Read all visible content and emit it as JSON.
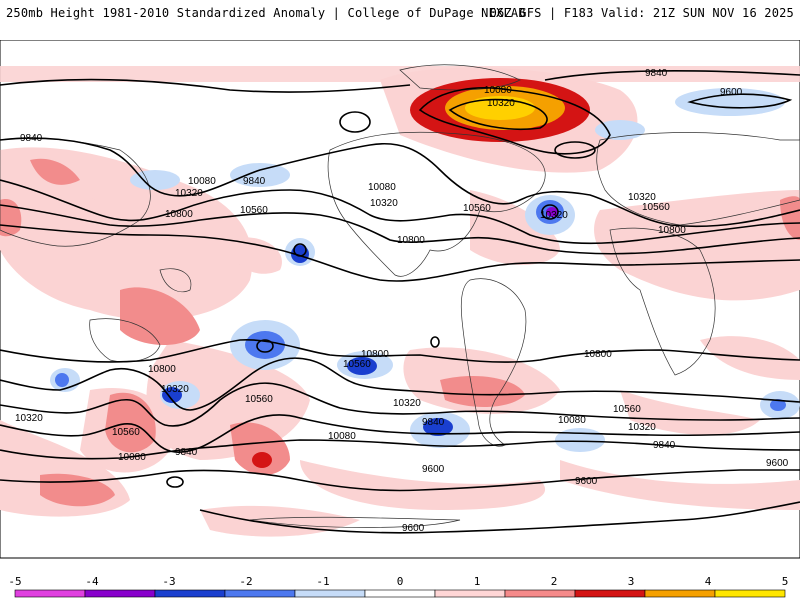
{
  "header": {
    "title": "250mb Height 1981-2010 Standardized Anomaly | College of DuPage NEXLAB",
    "run_info": "06Z GFS | F183 Valid: 21Z SUN NOV 16 2025"
  },
  "contour_labels": [
    {
      "id": "lbl-9840-np",
      "text": "9840"
    },
    {
      "id": "lbl-9600-ne",
      "text": "9600"
    },
    {
      "id": "lbl-10080-arc",
      "text": "10080"
    },
    {
      "id": "lbl-10320-arc",
      "text": "10320"
    },
    {
      "id": "lbl-9840-nw",
      "text": "9840"
    },
    {
      "id": "lbl-10080-npac",
      "text": "10080"
    },
    {
      "id": "lbl-9840-npac",
      "text": "9840"
    },
    {
      "id": "lbl-10320-npac",
      "text": "10320"
    },
    {
      "id": "lbl-10080-wna",
      "text": "10080"
    },
    {
      "id": "lbl-10320-wna",
      "text": "10320"
    },
    {
      "id": "lbl-10800-w",
      "text": "10800"
    },
    {
      "id": "lbl-10560-w",
      "text": "10560"
    },
    {
      "id": "lbl-10560-us",
      "text": "10560"
    },
    {
      "id": "lbl-10320-natl",
      "text": "10320"
    },
    {
      "id": "lbl-10800-us",
      "text": "10800"
    },
    {
      "id": "lbl-10320-eatl",
      "text": "10320"
    },
    {
      "id": "lbl-10560-eatl",
      "text": "10560"
    },
    {
      "id": "lbl-10800-afr",
      "text": "10800"
    },
    {
      "id": "lbl-10800-spac",
      "text": "10800"
    },
    {
      "id": "lbl-10560-spac",
      "text": "10560"
    },
    {
      "id": "lbl-10800-aus",
      "text": "10800"
    },
    {
      "id": "lbl-10320-aus",
      "text": "10320"
    },
    {
      "id": "lbl-10560-aus",
      "text": "10560"
    },
    {
      "id": "lbl-10320-sw",
      "text": "10320"
    },
    {
      "id": "lbl-10560-sw",
      "text": "10560"
    },
    {
      "id": "lbl-10080-sw",
      "text": "10080"
    },
    {
      "id": "lbl-9840-sw",
      "text": "9840"
    },
    {
      "id": "lbl-10080-spac2",
      "text": "10080"
    },
    {
      "id": "lbl-10320-spac2",
      "text": "10320"
    },
    {
      "id": "lbl-9840-spac2",
      "text": "9840"
    },
    {
      "id": "lbl-9600-spac",
      "text": "9600"
    },
    {
      "id": "lbl-10800-satl",
      "text": "10800"
    },
    {
      "id": "lbl-10560-satl",
      "text": "10560"
    },
    {
      "id": "lbl-10080-satl",
      "text": "10080"
    },
    {
      "id": "lbl-10320-satl",
      "text": "10320"
    },
    {
      "id": "lbl-9840-satl",
      "text": "9840"
    },
    {
      "id": "lbl-9600-satl",
      "text": "9600"
    },
    {
      "id": "lbl-9600-se",
      "text": "9600"
    },
    {
      "id": "lbl-9600-s",
      "text": "9600"
    }
  ],
  "colorbar": {
    "ticks": [
      "-5",
      "-4",
      "-3",
      "-2",
      "-1",
      "0",
      "1",
      "2",
      "3",
      "4",
      "5"
    ],
    "colors": [
      "#e040e0",
      "#8800cc",
      "#1a3fcf",
      "#4d78ef",
      "#c6dcf8",
      "#ffffff",
      "#ffd6d6",
      "#f58a8a",
      "#d41414",
      "#f5a000",
      "#ffe600"
    ]
  }
}
